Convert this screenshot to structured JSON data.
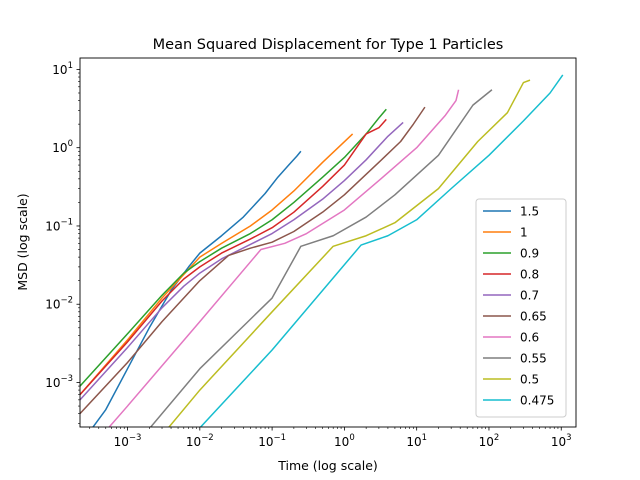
{
  "chart_data": {
    "type": "line",
    "title": "Mean Squared Displacement for Type 1 Particles",
    "xlabel": "Time (log scale)",
    "ylabel": "MSD (log scale)",
    "xscale": "log",
    "yscale": "log",
    "xlim": [
      0.00022,
      1600
    ],
    "ylim": [
      0.00027,
      14
    ],
    "x_ticks": [
      {
        "value": 0.001,
        "base": "10",
        "exp": "−3"
      },
      {
        "value": 0.01,
        "base": "10",
        "exp": "−2"
      },
      {
        "value": 0.1,
        "base": "10",
        "exp": "−1"
      },
      {
        "value": 1,
        "base": "10",
        "exp": "0"
      },
      {
        "value": 10,
        "base": "10",
        "exp": "1"
      },
      {
        "value": 100,
        "base": "10",
        "exp": "2"
      },
      {
        "value": 1000,
        "base": "10",
        "exp": "3"
      }
    ],
    "y_ticks": [
      {
        "value": 0.001,
        "base": "10",
        "exp": "−3"
      },
      {
        "value": 0.01,
        "base": "10",
        "exp": "−2"
      },
      {
        "value": 0.1,
        "base": "10",
        "exp": "−1"
      },
      {
        "value": 1,
        "base": "10",
        "exp": "0"
      },
      {
        "value": 10,
        "base": "10",
        "exp": "1"
      }
    ],
    "grid": false,
    "legend_position": "lower right",
    "series": [
      {
        "name": "1.5",
        "color": "#1f77b4",
        "points": [
          [
            0.00022,
            0.00016
          ],
          [
            0.0005,
            0.00045
          ],
          [
            0.001,
            0.0015
          ],
          [
            0.002,
            0.005
          ],
          [
            0.004,
            0.015
          ],
          [
            0.007,
            0.03
          ],
          [
            0.01,
            0.045
          ],
          [
            0.02,
            0.075
          ],
          [
            0.04,
            0.13
          ],
          [
            0.08,
            0.26
          ],
          [
            0.12,
            0.42
          ],
          [
            0.17,
            0.6
          ],
          [
            0.22,
            0.78
          ],
          [
            0.25,
            0.9
          ]
        ]
      },
      {
        "name": "1",
        "color": "#ff7f0e",
        "points": [
          [
            0.00022,
            0.0007
          ],
          [
            0.001,
            0.0035
          ],
          [
            0.003,
            0.012
          ],
          [
            0.006,
            0.024
          ],
          [
            0.01,
            0.04
          ],
          [
            0.02,
            0.06
          ],
          [
            0.05,
            0.1
          ],
          [
            0.1,
            0.16
          ],
          [
            0.2,
            0.28
          ],
          [
            0.5,
            0.65
          ],
          [
            1.3,
            1.5
          ]
        ]
      },
      {
        "name": "0.9",
        "color": "#2ca02c",
        "points": [
          [
            0.00022,
            0.0009
          ],
          [
            0.001,
            0.0042
          ],
          [
            0.003,
            0.013
          ],
          [
            0.006,
            0.025
          ],
          [
            0.01,
            0.035
          ],
          [
            0.02,
            0.052
          ],
          [
            0.05,
            0.08
          ],
          [
            0.1,
            0.12
          ],
          [
            0.2,
            0.2
          ],
          [
            0.5,
            0.42
          ],
          [
            1,
            0.75
          ],
          [
            2,
            1.5
          ],
          [
            3,
            2.4
          ],
          [
            3.8,
            3.1
          ]
        ]
      },
      {
        "name": "0.8",
        "color": "#d62728",
        "points": [
          [
            0.00022,
            0.0007
          ],
          [
            0.001,
            0.0033
          ],
          [
            0.003,
            0.011
          ],
          [
            0.006,
            0.021
          ],
          [
            0.01,
            0.03
          ],
          [
            0.02,
            0.045
          ],
          [
            0.05,
            0.068
          ],
          [
            0.1,
            0.095
          ],
          [
            0.2,
            0.15
          ],
          [
            0.5,
            0.32
          ],
          [
            1,
            0.6
          ],
          [
            2,
            1.5
          ],
          [
            3,
            1.8
          ],
          [
            3.8,
            2.3
          ]
        ]
      },
      {
        "name": "0.7",
        "color": "#9467bd",
        "points": [
          [
            0.00022,
            0.0006
          ],
          [
            0.001,
            0.0028
          ],
          [
            0.003,
            0.009
          ],
          [
            0.006,
            0.017
          ],
          [
            0.01,
            0.025
          ],
          [
            0.02,
            0.038
          ],
          [
            0.05,
            0.058
          ],
          [
            0.1,
            0.08
          ],
          [
            0.2,
            0.12
          ],
          [
            0.5,
            0.22
          ],
          [
            1,
            0.38
          ],
          [
            2,
            0.7
          ],
          [
            4,
            1.4
          ],
          [
            6.5,
            2.1
          ]
        ]
      },
      {
        "name": "0.65",
        "color": "#8c564b",
        "points": [
          [
            0.00022,
            0.0004
          ],
          [
            0.001,
            0.0018
          ],
          [
            0.003,
            0.006
          ],
          [
            0.01,
            0.02
          ],
          [
            0.025,
            0.042
          ],
          [
            0.05,
            0.052
          ],
          [
            0.1,
            0.062
          ],
          [
            0.2,
            0.085
          ],
          [
            0.5,
            0.15
          ],
          [
            1,
            0.25
          ],
          [
            3,
            0.65
          ],
          [
            6,
            1.2
          ],
          [
            9,
            2
          ],
          [
            13,
            3.3
          ]
        ]
      },
      {
        "name": "0.6",
        "color": "#e377c2",
        "points": [
          [
            0.00028,
            0.00013
          ],
          [
            0.001,
            0.0005
          ],
          [
            0.01,
            0.006
          ],
          [
            0.07,
            0.05
          ],
          [
            0.15,
            0.06
          ],
          [
            0.3,
            0.08
          ],
          [
            1,
            0.16
          ],
          [
            3,
            0.38
          ],
          [
            10,
            1
          ],
          [
            25,
            2.6
          ],
          [
            35,
            4
          ],
          [
            38,
            5.5
          ]
        ]
      },
      {
        "name": "0.55",
        "color": "#7f7f7f",
        "points": [
          [
            0.001,
            0.00012
          ],
          [
            0.01,
            0.0015
          ],
          [
            0.1,
            0.012
          ],
          [
            0.25,
            0.055
          ],
          [
            0.7,
            0.075
          ],
          [
            2,
            0.13
          ],
          [
            5,
            0.25
          ],
          [
            20,
            0.8
          ],
          [
            60,
            3.5
          ],
          [
            110,
            5.5
          ]
        ]
      },
      {
        "name": "0.5",
        "color": "#bcbd22",
        "points": [
          [
            0.0035,
            0.00025
          ],
          [
            0.01,
            0.0008
          ],
          [
            0.1,
            0.008
          ],
          [
            0.7,
            0.055
          ],
          [
            2,
            0.075
          ],
          [
            5,
            0.11
          ],
          [
            20,
            0.3
          ],
          [
            70,
            1.2
          ],
          [
            180,
            2.8
          ],
          [
            300,
            6.8
          ],
          [
            370,
            7.3
          ]
        ]
      },
      {
        "name": "0.475",
        "color": "#17becf",
        "points": [
          [
            0.0095,
            0.00025
          ],
          [
            0.1,
            0.0026
          ],
          [
            1.7,
            0.057
          ],
          [
            4,
            0.075
          ],
          [
            10,
            0.12
          ],
          [
            30,
            0.3
          ],
          [
            100,
            0.8
          ],
          [
            300,
            2.2
          ],
          [
            700,
            5
          ],
          [
            1050,
            8.5
          ]
        ]
      }
    ]
  }
}
